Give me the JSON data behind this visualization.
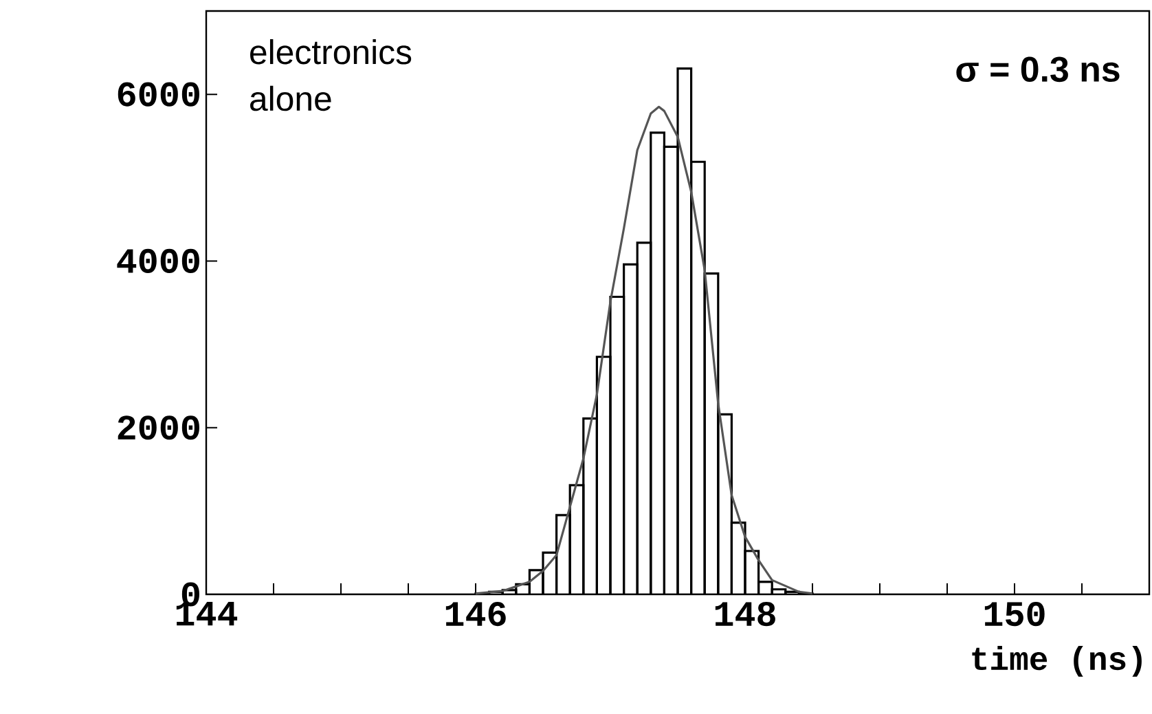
{
  "chart_data": {
    "type": "histogram",
    "bins": [
      146.0,
      146.1,
      146.2,
      146.3,
      146.4,
      146.5,
      146.6,
      146.7,
      146.8,
      146.9,
      147.0,
      147.1,
      147.2,
      147.3,
      147.4,
      147.5,
      147.6,
      147.7,
      147.8,
      147.9,
      148.0,
      148.1,
      148.2,
      148.3,
      148.4,
      148.5
    ],
    "values": [
      10,
      30,
      50,
      120,
      290,
      500,
      950,
      1310,
      2110,
      2850,
      3570,
      3960,
      4220,
      5540,
      5370,
      6310,
      5190,
      3850,
      2160,
      860,
      520,
      150,
      60,
      30,
      10
    ],
    "color": "#000000",
    "series": [
      {
        "type": "line",
        "color": "#555555",
        "x": [
          146.0,
          146.2,
          146.4,
          146.5,
          146.6,
          146.8,
          146.9,
          147.0,
          147.1,
          147.2,
          147.3,
          147.36,
          147.4,
          147.5,
          147.6,
          147.7,
          147.8,
          147.9,
          148.0,
          148.1,
          148.2,
          148.4,
          148.5
        ],
        "values": [
          10,
          40,
          150,
          280,
          470,
          1630,
          2400,
          3510,
          4390,
          5330,
          5770,
          5850,
          5800,
          5490,
          4830,
          3890,
          2290,
          1190,
          690,
          410,
          170,
          30,
          10
        ]
      }
    ],
    "xlabel": "time (ns)",
    "annotations": [
      "electronics alone",
      "**σ = 0.3 ns**"
    ],
    "xlim": [
      144,
      151
    ],
    "ylim": [
      0,
      7000
    ],
    "xticks": [
      144,
      {
        "value": 144.5,
        "label": null
      },
      {
        "value": 145,
        "label": null
      },
      {
        "value": 145.5,
        "label": null
      },
      146,
      {
        "value": 146.5,
        "label": null
      },
      {
        "value": 147,
        "label": null
      },
      {
        "value": 147.5,
        "label": null
      },
      148,
      {
        "value": 148.5,
        "label": null
      },
      {
        "value": 149,
        "label": null
      },
      {
        "value": 149.5,
        "label": null
      },
      150,
      {
        "value": 150.5,
        "label": null
      }
    ],
    "yticks": [
      0,
      2000,
      4000,
      6000
    ]
  }
}
